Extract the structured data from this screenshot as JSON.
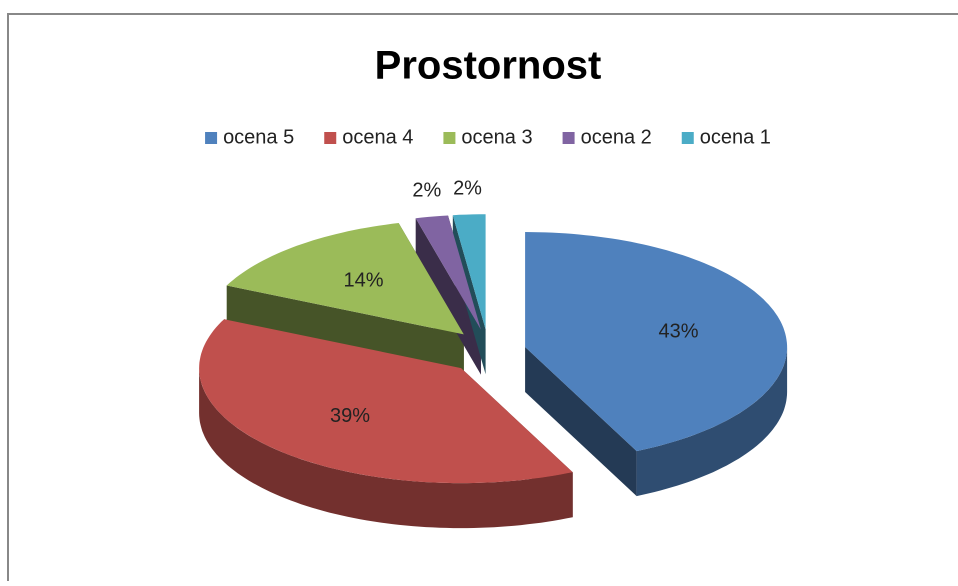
{
  "chart_data": {
    "type": "pie",
    "title": "Prostornost",
    "categories": [
      "ocena 5",
      "ocena 4",
      "ocena 3",
      "ocena 2",
      "ocena 1"
    ],
    "values": [
      43,
      39,
      14,
      2,
      2
    ],
    "value_labels": [
      "43%",
      "39%",
      "14%",
      "2%",
      "2%"
    ],
    "colors": [
      "#4f81bd",
      "#c0504d",
      "#9bbb59",
      "#8064a2",
      "#4bacc6"
    ],
    "legend": "top"
  }
}
